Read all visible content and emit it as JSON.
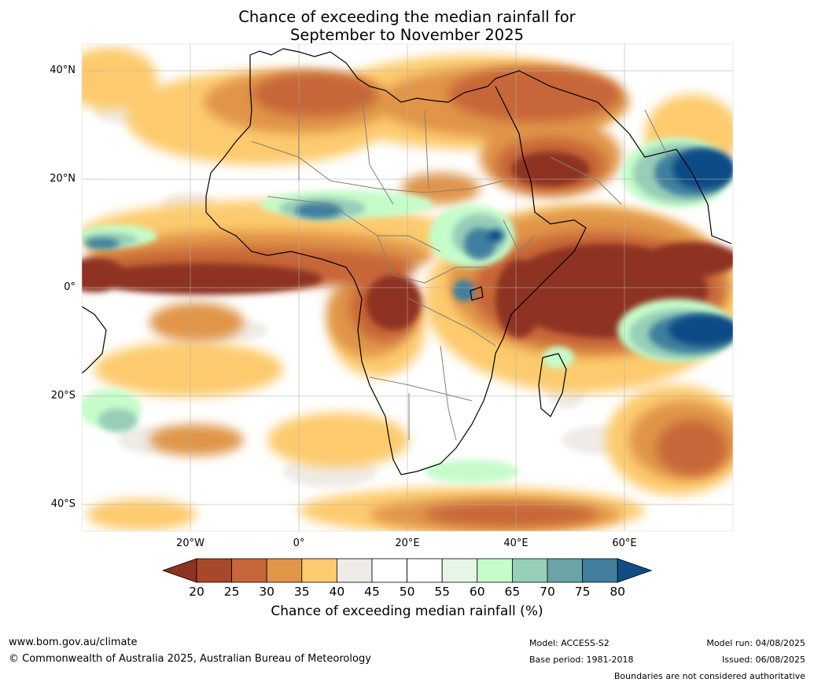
{
  "title_line1": "Chance of exceeding the median rainfall for",
  "title_line2": "September to November 2025",
  "map": {
    "lat_ticks": [
      "40°N",
      "20°N",
      "0°",
      "20°S",
      "40°S"
    ],
    "lon_ticks": [
      "20°W",
      "0°",
      "20°E",
      "40°E",
      "60°E"
    ]
  },
  "colorbar": {
    "ticks": [
      "20",
      "25",
      "30",
      "35",
      "40",
      "45",
      "50",
      "55",
      "60",
      "65",
      "70",
      "75",
      "80"
    ],
    "colors": [
      "#8e3320",
      "#a8482b",
      "#c76638",
      "#e09548",
      "#fdcb6e",
      "#efebe6",
      "#ffffff",
      "#ffffff",
      "#e5f5e6",
      "#c6fcca",
      "#97ceb8",
      "#6aa4a7",
      "#417f9d",
      "#114c86"
    ],
    "label": "Chance of exceeding median rainfall (%)"
  },
  "footer": {
    "website": "www.bom.gov.au/climate",
    "copyright": "© Commonwealth of Australia 2025, Australian Bureau of Meteorology",
    "model": "Model: ACCESS-S2",
    "base_period": "Base period: 1981-2018",
    "model_run": "Model run: 04/08/2025",
    "issued": "Issued: 06/08/2025",
    "disclaimer": "Boundaries are not considered authoritative"
  }
}
